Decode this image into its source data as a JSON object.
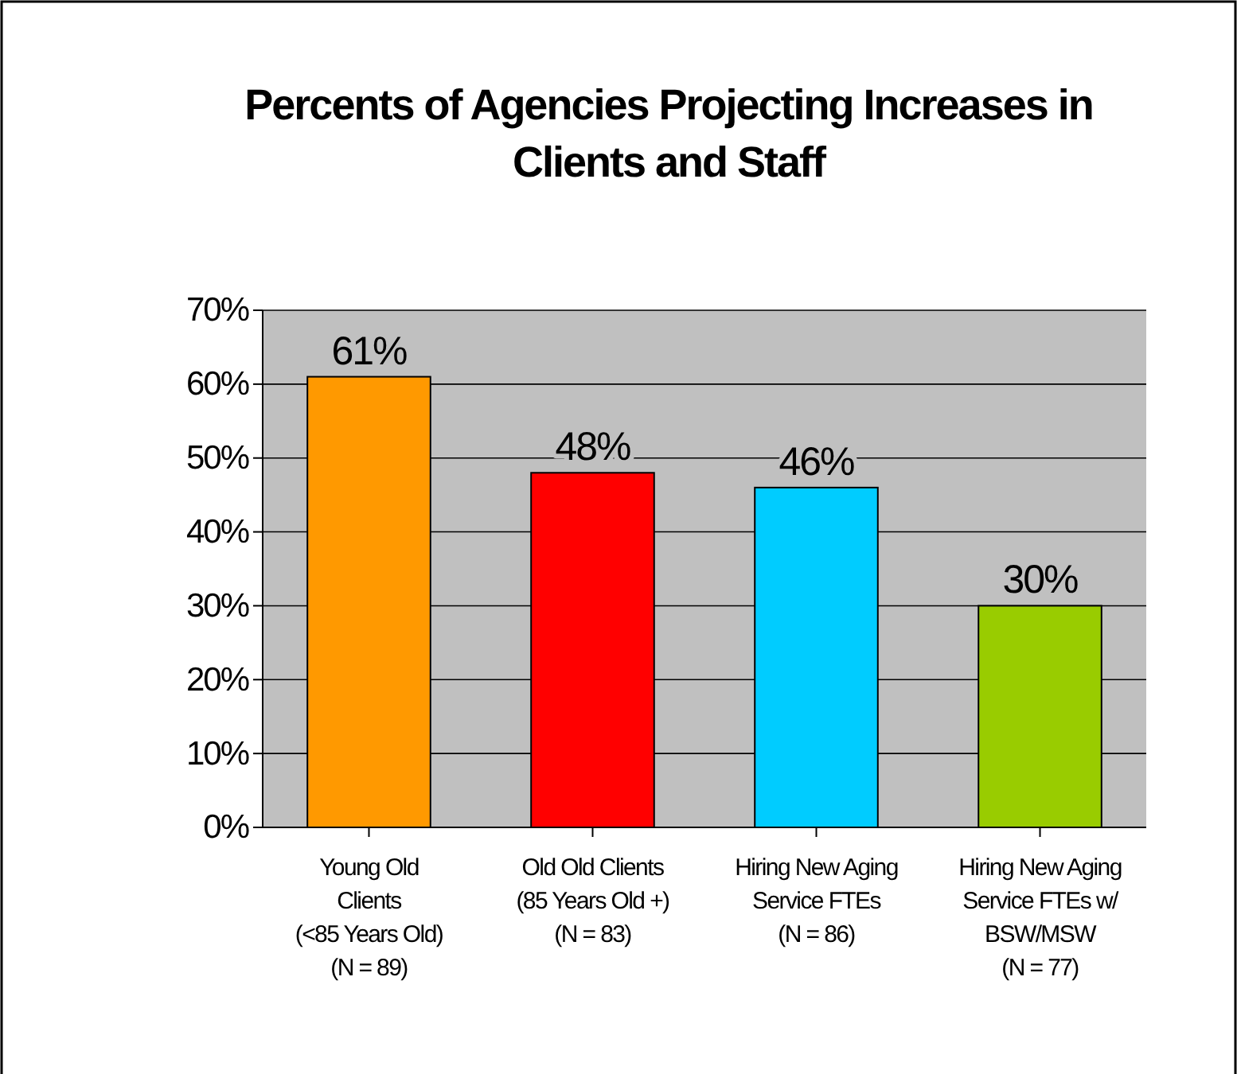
{
  "chart_data": {
    "type": "bar",
    "title": "Percents of Agencies Projecting Increases in Clients and Staff",
    "categories": [
      "Young Old\nClients\n(<85 Years Old)\n(N = 89)",
      "Old Old Clients\n(85 Years Old +)\n(N = 83)",
      "Hiring New Aging\nService FTEs\n(N = 86)",
      "Hiring New Aging\nService FTEs w/\nBSW/MSW\n(N = 77)"
    ],
    "values": [
      61,
      48,
      46,
      30
    ],
    "colors": [
      "#ff9900",
      "#ff0000",
      "#00ccff",
      "#99cc00"
    ],
    "value_labels": [
      "61%",
      "48%",
      "46%",
      "30%"
    ],
    "ylim": [
      0,
      70
    ],
    "yticks": [
      {
        "value": 0,
        "label": "0%"
      },
      {
        "value": 10,
        "label": "10%"
      },
      {
        "value": 20,
        "label": "20%"
      },
      {
        "value": 30,
        "label": "30%"
      },
      {
        "value": 40,
        "label": "40%"
      },
      {
        "value": 50,
        "label": "50%"
      },
      {
        "value": 60,
        "label": "60%"
      },
      {
        "value": 70,
        "label": "70%"
      }
    ],
    "grid": "y"
  }
}
